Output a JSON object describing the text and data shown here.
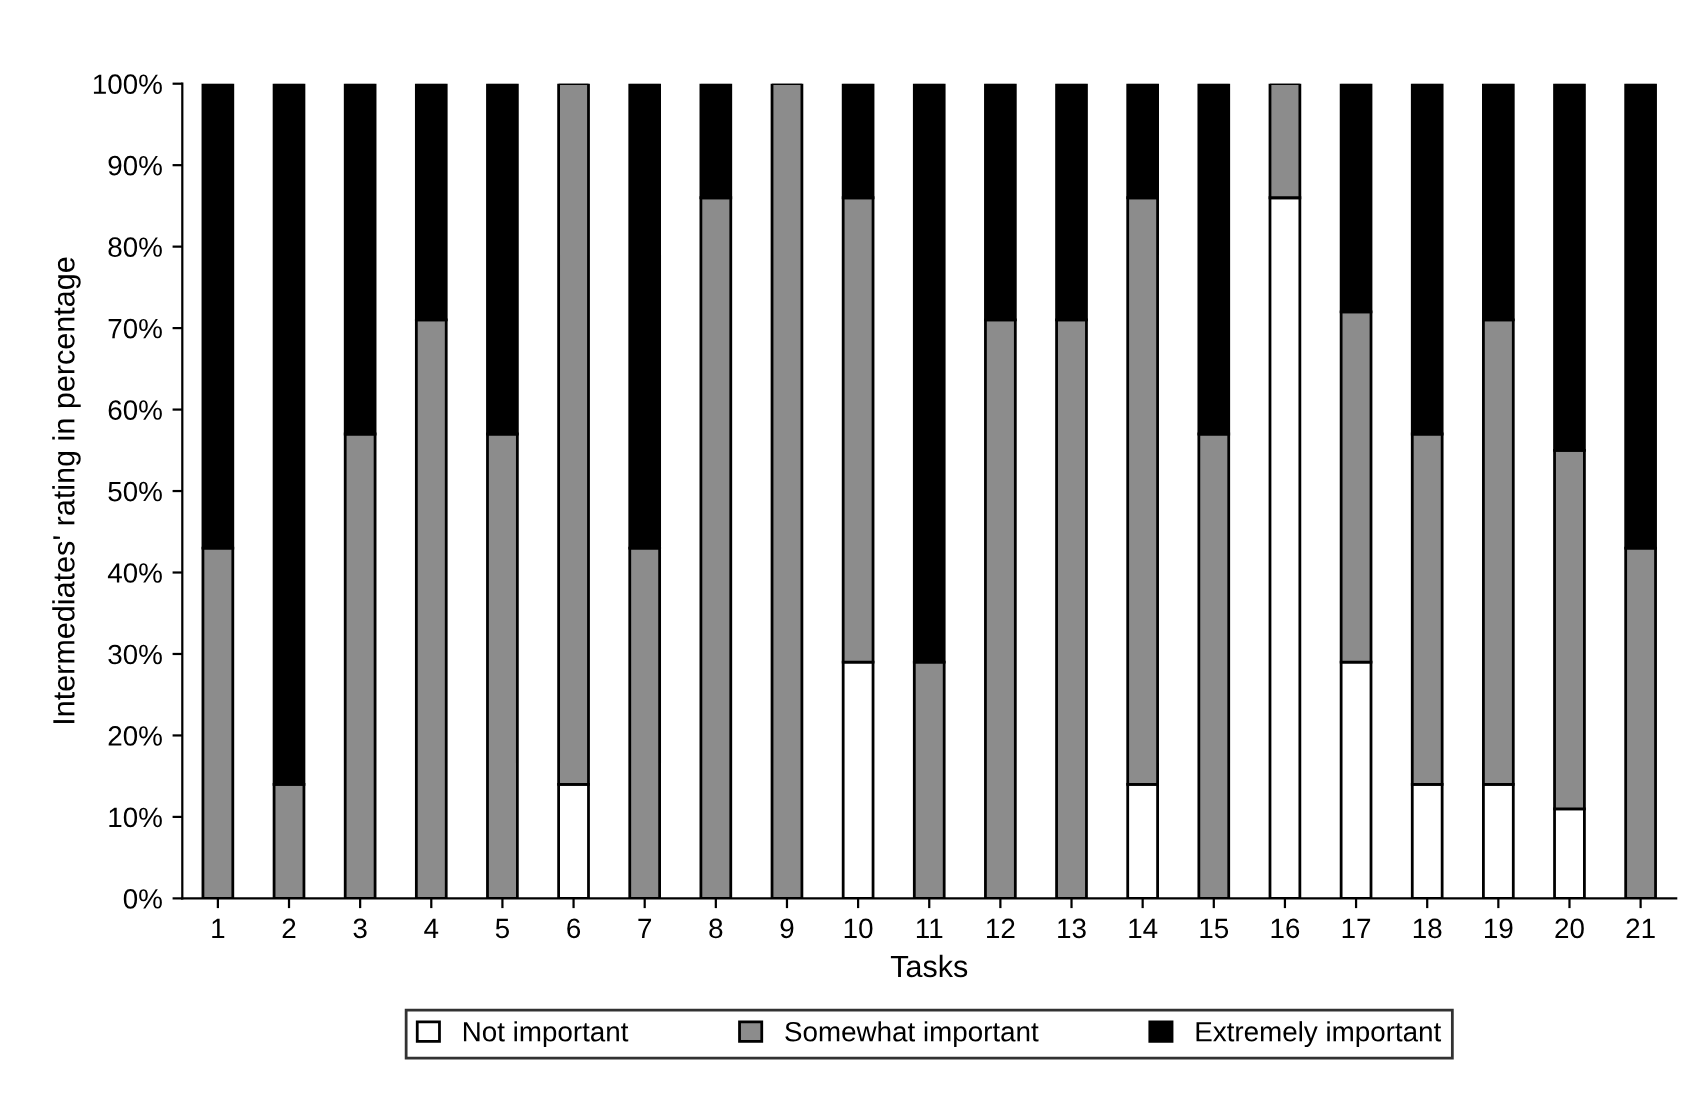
{
  "chart_data": {
    "type": "bar",
    "stacked": true,
    "xlabel": "Tasks",
    "ylabel": "Intermediates' rating in percentage",
    "categories": [
      "1",
      "2",
      "3",
      "4",
      "5",
      "6",
      "7",
      "8",
      "9",
      "10",
      "11",
      "12",
      "13",
      "14",
      "15",
      "16",
      "17",
      "18",
      "19",
      "20",
      "21"
    ],
    "series": [
      {
        "name": "Not important",
        "color": "#ffffff",
        "values": [
          0,
          0,
          0,
          0,
          0,
          14,
          0,
          0,
          0,
          29,
          0,
          0,
          0,
          14,
          0,
          86,
          29,
          14,
          14,
          11,
          0
        ]
      },
      {
        "name": "Somewhat important",
        "color": "#8c8c8c",
        "values": [
          43,
          14,
          57,
          71,
          57,
          86,
          43,
          86,
          100,
          57,
          29,
          71,
          71,
          72,
          57,
          14,
          43,
          43,
          57,
          44,
          43
        ]
      },
      {
        "name": "Extremely important",
        "color": "#000000",
        "values": [
          57,
          86,
          43,
          29,
          43,
          0,
          57,
          14,
          0,
          14,
          71,
          29,
          29,
          14,
          43,
          0,
          28,
          43,
          29,
          45,
          57
        ]
      }
    ],
    "ylim": [
      0,
      100
    ],
    "yticks": [
      {
        "value": 0,
        "label": "0%"
      },
      {
        "value": 10,
        "label": "10%"
      },
      {
        "value": 20,
        "label": "20%"
      },
      {
        "value": 30,
        "label": "30%"
      },
      {
        "value": 40,
        "label": "40%"
      },
      {
        "value": 50,
        "label": "50%"
      },
      {
        "value": 60,
        "label": "60%"
      },
      {
        "value": 70,
        "label": "70%"
      },
      {
        "value": 80,
        "label": "80%"
      },
      {
        "value": 90,
        "label": "90%"
      },
      {
        "value": 100,
        "label": "100%"
      }
    ],
    "grid": false,
    "legend": "bottom"
  }
}
